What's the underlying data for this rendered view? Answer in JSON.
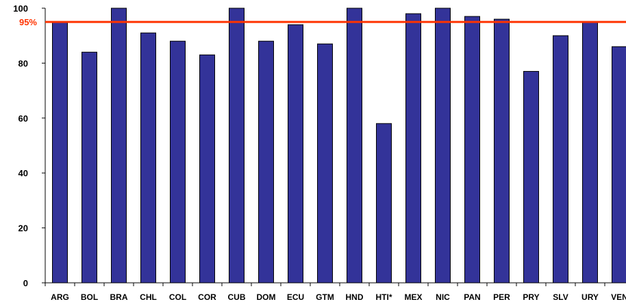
{
  "chart_data": {
    "type": "bar",
    "categories": [
      "ARG",
      "BOL",
      "BRA",
      "CHL",
      "COL",
      "COR",
      "CUB",
      "DOM",
      "ECU",
      "GTM",
      "HND",
      "HTI*",
      "MEX",
      "NIC",
      "PAN",
      "PER",
      "PRY",
      "SLV",
      "URY",
      "VEN"
    ],
    "values": [
      95,
      84,
      100,
      91,
      88,
      83,
      100,
      88,
      94,
      87,
      100,
      58,
      98,
      100,
      97,
      96,
      77,
      90,
      95,
      86
    ],
    "ylim": [
      0,
      100
    ],
    "yticks": [
      0,
      20,
      40,
      60,
      80,
      100
    ],
    "ytick_labels": [
      "0",
      "20",
      "40",
      "60",
      "80",
      "100"
    ],
    "reference_line": {
      "value": 95,
      "label": "95%",
      "color": "#ff3300"
    },
    "bar_color": "#333399",
    "grid": false,
    "legend": "none"
  }
}
